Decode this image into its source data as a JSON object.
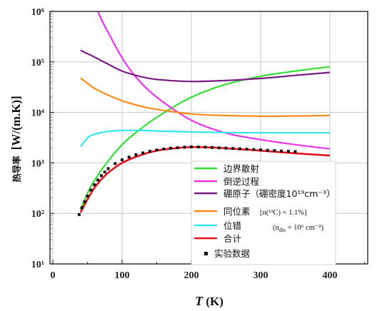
{
  "chart_data": {
    "type": "line",
    "title": "",
    "xlabel": "T (K)",
    "ylabel": "热导率  [W/(m.K)]",
    "x_ticks": [
      "0",
      "100",
      "200",
      "300",
      "400"
    ],
    "y_ticks": [
      "10¹",
      "10²",
      "10³",
      "10⁴",
      "10⁵",
      "10⁶"
    ],
    "xlim": [
      0,
      450
    ],
    "ylim": [
      10,
      1000000
    ],
    "yscale": "log",
    "grid": true,
    "legend_position": "bottom-right",
    "series": [
      {
        "name": "边界散射",
        "color": "#33dd33",
        "x": [
          40,
          50,
          60,
          80,
          100,
          120,
          150,
          200,
          250,
          300,
          350,
          400
        ],
        "y": [
          120,
          250,
          450,
          1100,
          2300,
          4000,
          8000,
          20000,
          36000,
          52000,
          66000,
          80000
        ]
      },
      {
        "name": "倒逆过程",
        "color": "#ee33ee",
        "x": [
          60,
          70,
          80,
          100,
          120,
          150,
          200,
          250,
          300,
          350,
          400
        ],
        "y": [
          1500000,
          700000,
          380000,
          120000,
          50000,
          20000,
          7000,
          3900,
          2900,
          2300,
          1900
        ]
      },
      {
        "name": "硼原子（硼密度10¹⁹cm⁻³）",
        "color": "#7a1e82",
        "x": [
          40,
          60,
          80,
          100,
          125,
          150,
          200,
          250,
          300,
          350,
          400
        ],
        "y": [
          170000,
          125000,
          90000,
          66000,
          52000,
          45000,
          41000,
          43000,
          47000,
          54000,
          62000
        ]
      },
      {
        "name": "同位素",
        "color": "#ff8c1a",
        "x": [
          40,
          60,
          80,
          100,
          125,
          150,
          200,
          250,
          300,
          350,
          400
        ],
        "y": [
          48000,
          30000,
          22000,
          17000,
          13500,
          11500,
          9300,
          8700,
          8400,
          8500,
          8700
        ]
      },
      {
        "name": "位错",
        "color": "#33e6f0",
        "x": [
          40,
          50,
          60,
          80,
          100,
          125,
          150,
          200,
          250,
          300,
          350,
          400
        ],
        "y": [
          2100,
          3100,
          3700,
          4200,
          4400,
          4400,
          4300,
          4100,
          4000,
          3950,
          3950,
          3950
        ]
      },
      {
        "name": "合计",
        "color": "#e8101a",
        "x": [
          40,
          50,
          60,
          70,
          80,
          100,
          125,
          150,
          175,
          200,
          225,
          250,
          300,
          350,
          400
        ],
        "y": [
          105,
          190,
          320,
          470,
          640,
          1000,
          1400,
          1750,
          1950,
          2050,
          2030,
          1950,
          1750,
          1550,
          1400
        ]
      }
    ],
    "experimental": {
      "name": "实验数据",
      "color": "#111111",
      "x": [
        38,
        42,
        46,
        50,
        55,
        60,
        65,
        70,
        75,
        80,
        90,
        100,
        110,
        120,
        130,
        140,
        150,
        160,
        170,
        180,
        190,
        200,
        210,
        220,
        230,
        240,
        250,
        260,
        270,
        280,
        290,
        300,
        310,
        320,
        330,
        340,
        350
      ],
      "y": [
        95,
        130,
        170,
        220,
        290,
        370,
        460,
        560,
        660,
        770,
        970,
        1150,
        1300,
        1450,
        1580,
        1700,
        1800,
        1880,
        1950,
        2000,
        2050,
        2080,
        2070,
        2050,
        2020,
        1990,
        1960,
        1930,
        1900,
        1870,
        1840,
        1810,
        1780,
        1750,
        1720,
        1700,
        1680
      ]
    },
    "legend_notes": {
      "isotope": "[n(¹³C) = 1.1%]",
      "dislocation": "(n",
      "dislocation_sub": "dis",
      "dislocation_rest": " = 10⁶ cm⁻²)"
    }
  }
}
